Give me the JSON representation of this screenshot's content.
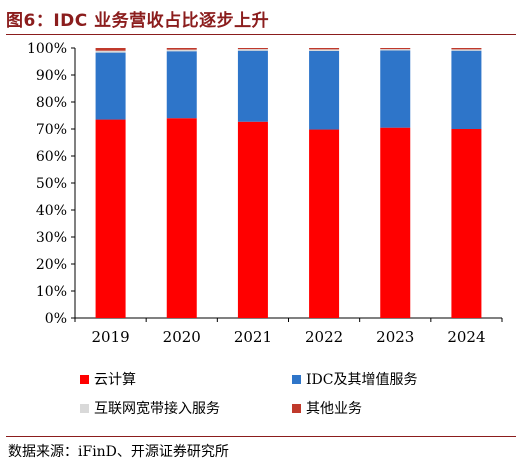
{
  "title": "图6：IDC 业务营收占比逐步上升",
  "source": "数据来源：iFinD、开源证券研究所",
  "chart_data": {
    "type": "bar",
    "stacked": true,
    "categories": [
      "2019",
      "2020",
      "2021",
      "2022",
      "2023",
      "2024"
    ],
    "series": [
      {
        "name": "云计算",
        "color": "#FF0000",
        "values": [
          73.5,
          74.0,
          72.7,
          69.8,
          70.5,
          70.0
        ]
      },
      {
        "name": "IDC及其增值服务",
        "color": "#2E75C9",
        "values": [
          24.8,
          24.8,
          26.3,
          29.1,
          28.6,
          29.0
        ]
      },
      {
        "name": "互联网宽带接入服务",
        "color": "#D9D9D9",
        "values": [
          0.7,
          0.6,
          0.6,
          0.6,
          0.5,
          0.5
        ]
      },
      {
        "name": "其他业务",
        "color": "#C0392B",
        "values": [
          1.0,
          0.6,
          0.4,
          0.5,
          0.4,
          0.5
        ]
      }
    ],
    "ylim": [
      0,
      100
    ],
    "yticks": [
      "0%",
      "10%",
      "20%",
      "30%",
      "40%",
      "50%",
      "60%",
      "70%",
      "80%",
      "90%",
      "100%"
    ],
    "ytick_values": [
      0,
      10,
      20,
      30,
      40,
      50,
      60,
      70,
      80,
      90,
      100
    ],
    "legend_position": "bottom",
    "grid": false
  }
}
